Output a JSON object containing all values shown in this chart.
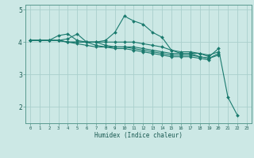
{
  "xlabel": "Humidex (Indice chaleur)",
  "background_color": "#cce8e5",
  "plot_bg_color": "#cce8e5",
  "line_color": "#1a7a6e",
  "grid_color": "#aacfcc",
  "xlim": [
    -0.5,
    23.5
  ],
  "ylim": [
    1.5,
    5.15
  ],
  "yticks": [
    2,
    3,
    4,
    5
  ],
  "xtick_labels": [
    "0",
    "1",
    "2",
    "3",
    "4",
    "5",
    "6",
    "7",
    "8",
    "9",
    "10",
    "11",
    "12",
    "13",
    "14",
    "15",
    "16",
    "17",
    "18",
    "19",
    "20",
    "21",
    "22",
    "23"
  ],
  "series": [
    [
      4.05,
      4.05,
      4.05,
      4.05,
      4.1,
      4.25,
      4.0,
      4.0,
      4.05,
      4.3,
      4.8,
      4.65,
      4.55,
      4.3,
      4.15,
      3.75,
      3.65,
      3.65,
      3.65,
      3.55,
      3.8,
      2.3,
      1.75,
      null
    ],
    [
      4.05,
      4.05,
      4.05,
      4.2,
      4.25,
      4.05,
      4.0,
      3.9,
      3.85,
      3.85,
      3.85,
      3.85,
      3.8,
      3.75,
      3.7,
      3.65,
      3.65,
      3.65,
      3.55,
      3.5,
      3.65,
      null,
      null,
      null
    ],
    [
      4.05,
      4.05,
      4.05,
      4.05,
      4.0,
      4.0,
      4.0,
      4.0,
      4.0,
      4.0,
      4.0,
      4.0,
      3.95,
      3.9,
      3.85,
      3.75,
      3.7,
      3.7,
      3.65,
      3.6,
      3.7,
      null,
      null,
      null
    ],
    [
      4.05,
      4.05,
      4.05,
      4.05,
      4.0,
      4.0,
      4.0,
      4.0,
      3.9,
      3.85,
      3.85,
      3.8,
      3.75,
      3.7,
      3.65,
      3.6,
      3.6,
      3.6,
      3.55,
      3.5,
      3.6,
      null,
      null,
      null
    ],
    [
      4.05,
      4.05,
      4.05,
      4.05,
      4.0,
      3.95,
      3.9,
      3.85,
      3.85,
      3.8,
      3.8,
      3.75,
      3.7,
      3.65,
      3.6,
      3.55,
      3.55,
      3.55,
      3.5,
      3.45,
      null,
      null,
      null,
      null
    ]
  ]
}
